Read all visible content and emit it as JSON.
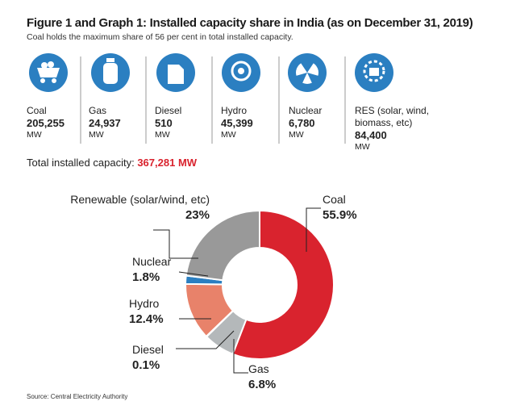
{
  "title": "Figure 1 and Graph 1: Installed capacity share in India (as on December 31, 2019)",
  "subtitle": "Coal holds the maximum share of 56 per cent in total installed capacity.",
  "capacities": [
    {
      "name": "Coal",
      "value": "205,255",
      "unit": "MW"
    },
    {
      "name": "Gas",
      "value": "24,937",
      "unit": "MW"
    },
    {
      "name": "Diesel",
      "value": "510",
      "unit": "MW"
    },
    {
      "name": "Hydro",
      "value": "45,399",
      "unit": "MW"
    },
    {
      "name": "Nuclear",
      "value": "6,780",
      "unit": "MW"
    },
    {
      "name": "RES (solar, wind, biomass, etc)",
      "value": "84,400",
      "unit": "MW"
    }
  ],
  "total": {
    "label": "Total installed capacity:",
    "value": "367,281",
    "unit": "MW"
  },
  "chart_data": {
    "type": "pie",
    "donut": true,
    "categories": [
      "Coal",
      "Gas",
      "Diesel",
      "Hydro",
      "Nuclear",
      "Renewable (solar/wind, etc)"
    ],
    "values": [
      55.9,
      6.8,
      0.1,
      12.4,
      1.8,
      23
    ],
    "value_labels": [
      "55.9%",
      "6.8%",
      "0.1%",
      "12.4%",
      "1.8%",
      "23%"
    ],
    "colors": [
      "#d9232e",
      "#b4b8ba",
      "#555555",
      "#e8826a",
      "#2b7fc1",
      "#999999"
    ]
  },
  "source": "Source: Central Electricity Authority"
}
